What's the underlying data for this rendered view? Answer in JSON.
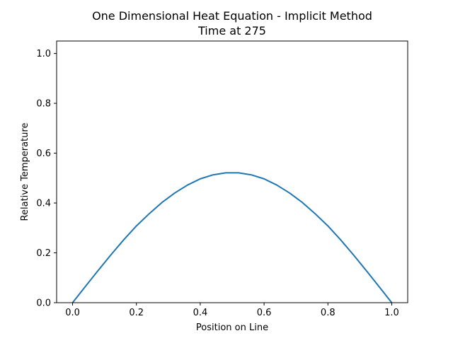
{
  "chart_data": {
    "type": "line",
    "title": "One Dimensional Heat Equation - Implicit Method",
    "subtitle": "Time at 275",
    "xlabel": "Position on Line",
    "ylabel": "Relative Temperature",
    "xlim": [
      -0.05,
      1.05
    ],
    "ylim": [
      0.0,
      1.05
    ],
    "xticks": [
      "0.0",
      "0.2",
      "0.4",
      "0.6",
      "0.8",
      "1.0"
    ],
    "yticks": [
      "0.0",
      "0.2",
      "0.4",
      "0.6",
      "0.8",
      "1.0"
    ],
    "grid": false,
    "series": [
      {
        "color": "#1f77b4",
        "x": [
          0.0,
          0.04,
          0.08,
          0.12,
          0.16,
          0.2,
          0.24,
          0.28,
          0.32,
          0.36,
          0.4,
          0.44,
          0.48,
          0.52,
          0.56,
          0.6,
          0.64,
          0.68,
          0.72,
          0.76,
          0.8,
          0.84,
          0.88,
          0.92,
          0.96,
          1.0
        ],
        "y": [
          0.0,
          0.065,
          0.129,
          0.192,
          0.252,
          0.308,
          0.357,
          0.402,
          0.44,
          0.472,
          0.497,
          0.513,
          0.521,
          0.521,
          0.513,
          0.497,
          0.472,
          0.44,
          0.402,
          0.357,
          0.308,
          0.252,
          0.192,
          0.129,
          0.065,
          0.0
        ]
      }
    ]
  }
}
